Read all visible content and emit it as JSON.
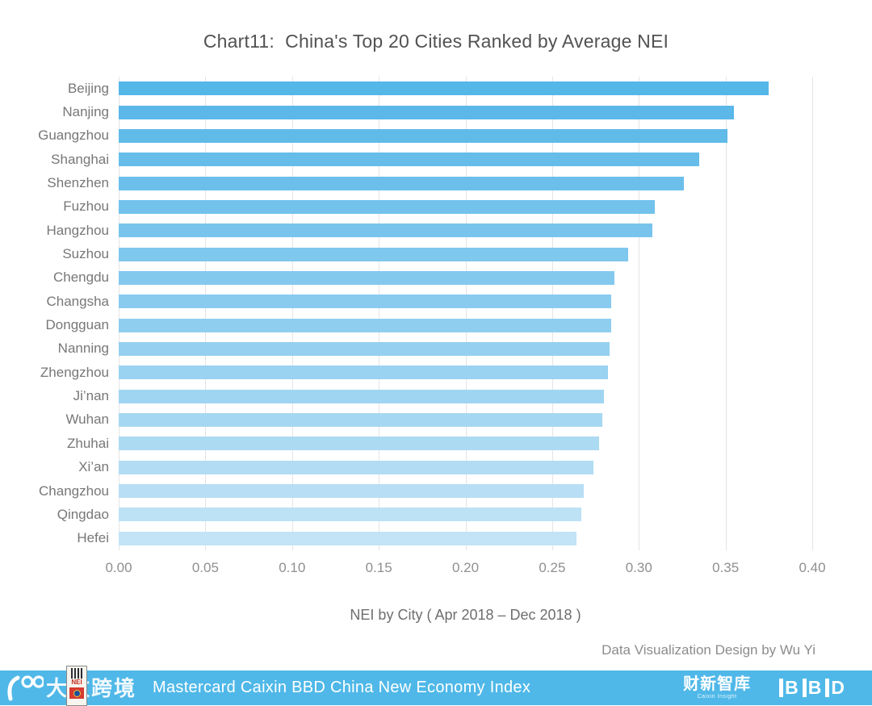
{
  "chart_data": {
    "type": "bar",
    "orientation": "horizontal",
    "title": "Chart11:  China's Top 20 Cities Ranked by Average NEI",
    "categories": [
      "Beijing",
      "Nanjing",
      "Guangzhou",
      "Shanghai",
      "Shenzhen",
      "Fuzhou",
      "Hangzhou",
      "Suzhou",
      "Chengdu",
      "Changsha",
      "Dongguan",
      "Nanning",
      "Zhengzhou",
      "Ji’nan",
      "Wuhan",
      "Zhuhai",
      "Xi’an",
      "Changzhou",
      "Qingdao",
      "Hefei"
    ],
    "values": [
      0.375,
      0.355,
      0.351,
      0.335,
      0.326,
      0.309,
      0.308,
      0.294,
      0.286,
      0.284,
      0.284,
      0.283,
      0.282,
      0.28,
      0.279,
      0.277,
      0.274,
      0.268,
      0.267,
      0.264
    ],
    "xlabel": "NEI by City ( Apr 2018 – Dec 2018 )",
    "ylabel": "",
    "xlim": [
      0,
      0.4
    ],
    "xticks": [
      "0.00",
      "0.05",
      "0.10",
      "0.15",
      "0.20",
      "0.25",
      "0.30",
      "0.35",
      "0.40"
    ],
    "grid": true,
    "legend": "none",
    "bar_color_start": "#55b6e8",
    "bar_color_end": "#c3e3f6",
    "gridline_color": "#e4e4e4"
  },
  "credit": "Data Visualization Design by Wu Yi",
  "footer": {
    "text": "Mastercard Caixin BBD China New Economy Index",
    "bg_color": "#4fb8e8",
    "left_logo_text": "大数跨境",
    "nei_badge_text": "NEI",
    "caixin_logo": "财新智库",
    "caixin_logo_sub": "Caixin Insight",
    "bbd_logo": "BBD"
  }
}
